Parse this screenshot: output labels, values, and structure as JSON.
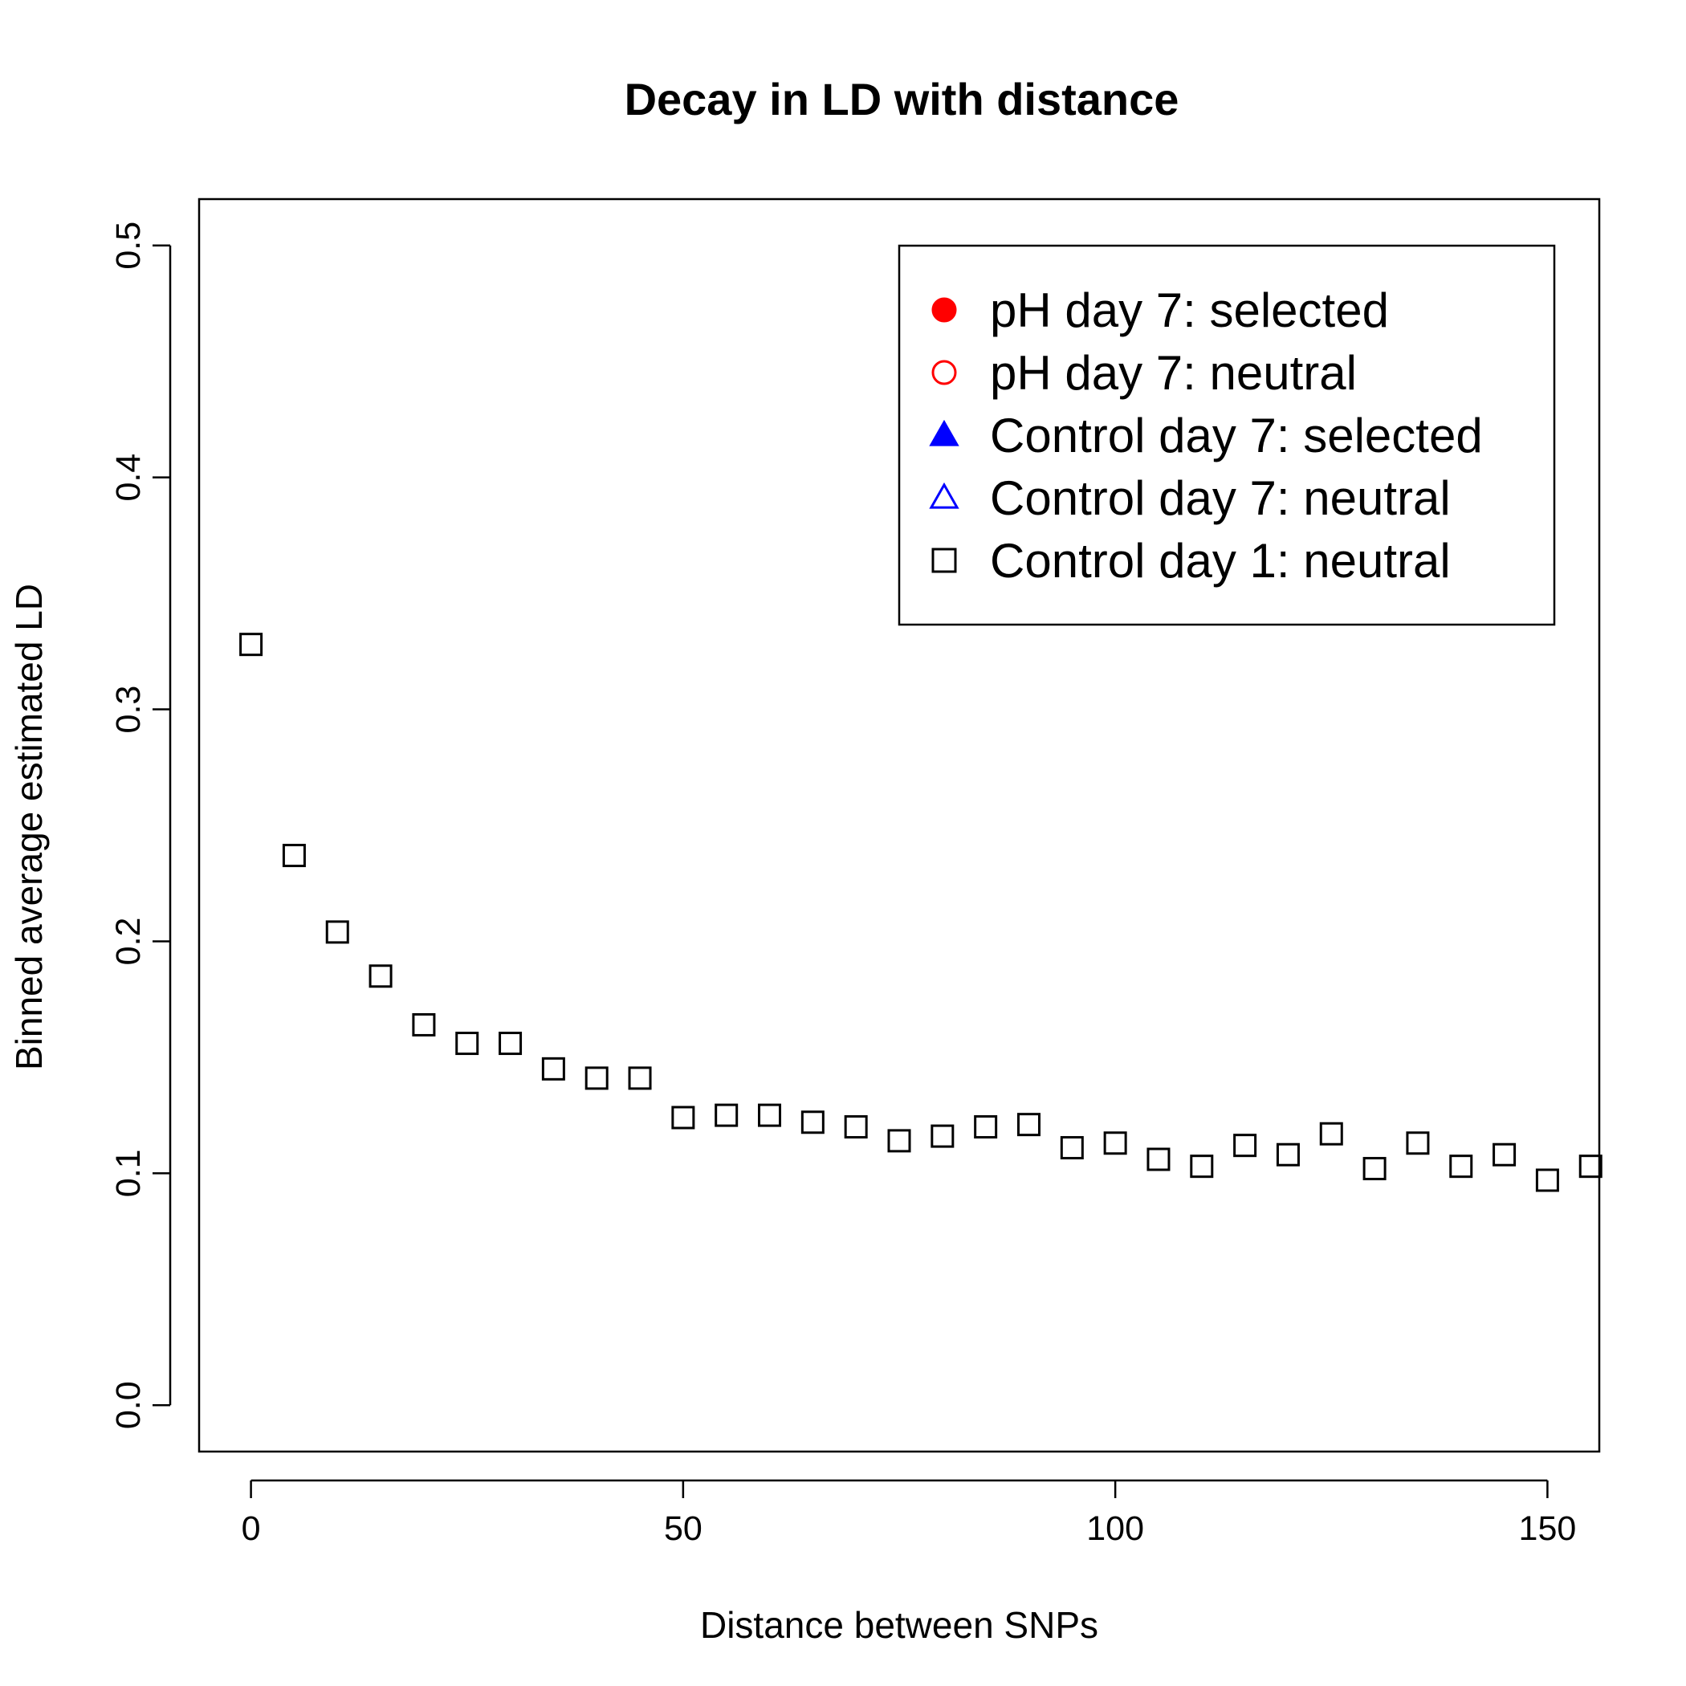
{
  "chart_data": {
    "type": "scatter",
    "title": "Decay in LD with distance",
    "xlabel": "Distance between SNPs",
    "ylabel": "Binned average estimated LD",
    "xlim": [
      -6,
      156
    ],
    "ylim": [
      -0.02,
      0.52
    ],
    "x_ticks": [
      0,
      50,
      100,
      150
    ],
    "x_tick_labels": [
      "0",
      "50",
      "100",
      "150"
    ],
    "y_ticks": [
      0.0,
      0.1,
      0.2,
      0.3,
      0.4,
      0.5
    ],
    "y_tick_labels": [
      "0.0",
      "0.1",
      "0.2",
      "0.3",
      "0.4",
      "0.5"
    ],
    "grid": false,
    "legend_position": "top-right",
    "legend": [
      {
        "label": "pH day 7: selected",
        "marker": "filled-circle",
        "color": "#ff0000"
      },
      {
        "label": "pH day 7: neutral",
        "marker": "open-circle",
        "color": "#ff0000"
      },
      {
        "label": "Control day 7: selected",
        "marker": "filled-triangle",
        "color": "#0000ff"
      },
      {
        "label": "Control day 7: neutral",
        "marker": "open-triangle",
        "color": "#0000ff"
      },
      {
        "label": "Control day 1: neutral",
        "marker": "open-square",
        "color": "#000000"
      }
    ],
    "series": [
      {
        "name": "Control day 1: neutral",
        "marker": "open-square",
        "color": "#000000",
        "x": [
          0,
          5,
          10,
          15,
          20,
          25,
          30,
          35,
          40,
          45,
          50,
          55,
          60,
          65,
          70,
          75,
          80,
          85,
          90,
          95,
          100,
          105,
          110,
          115,
          120,
          125,
          130,
          135,
          140,
          145,
          150,
          155
        ],
        "y": [
          0.328,
          0.237,
          0.204,
          0.185,
          0.164,
          0.156,
          0.156,
          0.145,
          0.141,
          0.141,
          0.124,
          0.125,
          0.125,
          0.122,
          0.12,
          0.114,
          0.116,
          0.12,
          0.121,
          0.111,
          0.113,
          0.106,
          0.103,
          0.112,
          0.108,
          0.117,
          0.102,
          0.113,
          0.103,
          0.108,
          0.097,
          0.103
        ]
      }
    ]
  }
}
